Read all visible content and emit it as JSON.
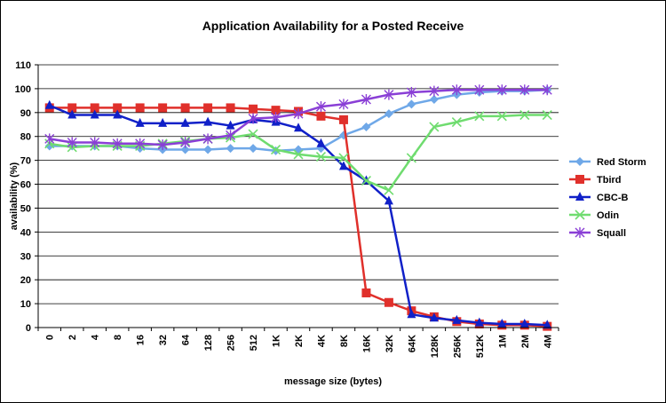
{
  "chart_data": {
    "type": "line",
    "title": "Application Availability for a Posted Receive",
    "xlabel": "message size (bytes)",
    "ylabel": "availability (%)",
    "categories": [
      "0",
      "2",
      "4",
      "8",
      "16",
      "32",
      "64",
      "128",
      "256",
      "512",
      "1K",
      "2K",
      "4K",
      "8K",
      "16K",
      "32K",
      "64K",
      "128K",
      "256K",
      "512K",
      "1M",
      "2M",
      "4M"
    ],
    "ylim": [
      0,
      110
    ],
    "yticks": [
      0,
      10,
      20,
      30,
      40,
      50,
      60,
      70,
      80,
      90,
      100,
      110
    ],
    "grid": true,
    "legend_position": "right",
    "series": [
      {
        "name": "Red Storm",
        "color": "#6fa8e8",
        "marker": "diamond",
        "values": [
          76,
          76,
          76,
          76,
          75,
          74.5,
          74.5,
          74.5,
          75,
          75,
          74,
          74.5,
          75,
          80.5,
          84,
          89.5,
          93.5,
          95.5,
          97.5,
          98.5,
          99,
          99,
          99.5
        ]
      },
      {
        "name": "Tbird",
        "color": "#e0302b",
        "marker": "square",
        "values": [
          92,
          92,
          92,
          92,
          92,
          92,
          92,
          92,
          92,
          91.5,
          91,
          90.5,
          88.5,
          87,
          14.5,
          10.5,
          7,
          4.5,
          2.5,
          1.5,
          1,
          1,
          0.5
        ]
      },
      {
        "name": "CBC-B",
        "color": "#1020c8",
        "marker": "triangle",
        "values": [
          93,
          89,
          89,
          89,
          85.5,
          85.5,
          85.5,
          86,
          84.5,
          87,
          86,
          83.5,
          77,
          67.5,
          61.5,
          53,
          5.5,
          4,
          3,
          2,
          1.5,
          1.5,
          1
        ]
      },
      {
        "name": "Odin",
        "color": "#6fdc6f",
        "marker": "x",
        "values": [
          77,
          75.5,
          76,
          76,
          76,
          77,
          78,
          79,
          79.5,
          81,
          74.5,
          72.5,
          71.5,
          71,
          61.5,
          57.5,
          71,
          84,
          86,
          88.5,
          88.5,
          89,
          89
        ]
      },
      {
        "name": "Squall",
        "color": "#8a3fd6",
        "marker": "star",
        "values": [
          79,
          77.5,
          77.5,
          77,
          77,
          76.5,
          77.5,
          79,
          80.5,
          87.5,
          88,
          89.5,
          92.5,
          93.5,
          95.5,
          97.5,
          98.5,
          99,
          99.5,
          99.5,
          99.5,
          99.5,
          99.5
        ]
      }
    ]
  }
}
